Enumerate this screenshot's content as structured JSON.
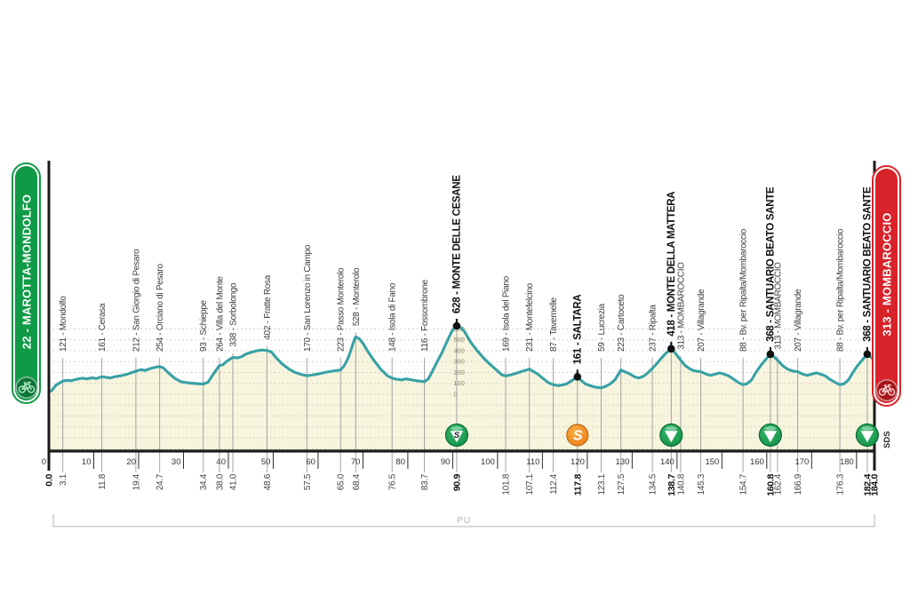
{
  "start_badge": {
    "label": "22 - MAROTTA-MONDOLFO",
    "color": "#0f9a46"
  },
  "finish_badge": {
    "label": "313 - MOMBAROCCIO",
    "color": "#d8232a"
  },
  "chart_data": {
    "type": "area",
    "title": "",
    "x_range_km": [
      0,
      184
    ],
    "ylim_m": [
      0,
      600
    ],
    "km_ticks": [
      0,
      10,
      20,
      30,
      40,
      50,
      60,
      70,
      80,
      90,
      100,
      110,
      120,
      130,
      140,
      150,
      160,
      170,
      180
    ],
    "elevation_scale": {
      "km": 90.9,
      "values": [
        600,
        500,
        400,
        300,
        200,
        100,
        0
      ]
    },
    "footer": {
      "bracket_label": "PU"
    },
    "annotations": [
      {
        "text": "SDS",
        "km": 184
      }
    ],
    "colors": {
      "line": "#38a1a5",
      "fill": "#f8f5df",
      "grid": "#c9c7ae",
      "waypoint_line": "#9a9a9a",
      "bold_line": "#1a1a1a",
      "axis": "#1a1a1a",
      "gpm": "#149a4c",
      "gpm_dark": "#0a6d35",
      "sprint": "#f08c1f",
      "sprint_dark": "#c0660d",
      "label": "#3c3c3c",
      "label_bold": "#101010",
      "footer_gray": "#b5b5b5"
    },
    "waypoints": [
      {
        "km": 0.0,
        "km_label": "0.0",
        "label": null,
        "elevation": 22,
        "bold": true,
        "marker": null
      },
      {
        "km": 3.1,
        "km_label": "3.1",
        "label": "121 - Mondolfo",
        "elevation": 121,
        "bold": false,
        "marker": null
      },
      {
        "km": 11.8,
        "km_label": "11.8",
        "label": "161 - Cerasa",
        "elevation": 161,
        "bold": false,
        "marker": null
      },
      {
        "km": 19.4,
        "km_label": "19.4",
        "label": "212 - San Giorgio di Pesaro",
        "elevation": 212,
        "bold": false,
        "marker": null
      },
      {
        "km": 24.7,
        "km_label": "24.7",
        "label": "254 - Orciano di Pesaro",
        "elevation": 254,
        "bold": false,
        "marker": null
      },
      {
        "km": 34.4,
        "km_label": "34.4",
        "label": "93 - Schieppe",
        "elevation": 93,
        "bold": false,
        "marker": null
      },
      {
        "km": 38.0,
        "km_label": "38.0",
        "label": "264 - Villa del Monte",
        "elevation": 264,
        "bold": false,
        "marker": null
      },
      {
        "km": 41.0,
        "km_label": "41.0",
        "label": "338 - Sorbolongo",
        "elevation": 338,
        "bold": false,
        "marker": null
      },
      {
        "km": 48.6,
        "km_label": "48.6",
        "label": "402 - Fratte Rosa",
        "elevation": 402,
        "bold": false,
        "marker": null
      },
      {
        "km": 57.5,
        "km_label": "57.5",
        "label": "170 - San Lorenzo in Campo",
        "elevation": 170,
        "bold": false,
        "marker": null
      },
      {
        "km": 65.0,
        "km_label": "65.0",
        "label": "223 - Passo Monterolo",
        "elevation": 223,
        "bold": false,
        "marker": null
      },
      {
        "km": 68.4,
        "km_label": "68.4",
        "label": "528 - Monterolo",
        "elevation": 528,
        "bold": false,
        "marker": null
      },
      {
        "km": 76.5,
        "km_label": "76.5",
        "label": "148 - Isola di Fano",
        "elevation": 148,
        "bold": false,
        "marker": null
      },
      {
        "km": 83.7,
        "km_label": "83.7",
        "label": "116 - Fossombrone",
        "elevation": 116,
        "bold": false,
        "marker": null
      },
      {
        "km": 90.9,
        "km_label": "90.9",
        "label": "628 - MONTE DELLE CESANE",
        "elevation": 628,
        "bold": true,
        "marker": "gpm-s"
      },
      {
        "km": 101.8,
        "km_label": "101.8",
        "label": "169 - Isola del Piano",
        "elevation": 169,
        "bold": false,
        "marker": null
      },
      {
        "km": 107.1,
        "km_label": "107.1",
        "label": "231 - Montefelcino",
        "elevation": 231,
        "bold": false,
        "marker": null
      },
      {
        "km": 112.4,
        "km_label": "112.4",
        "label": "87 - Tavernelle",
        "elevation": 87,
        "bold": false,
        "marker": null
      },
      {
        "km": 117.8,
        "km_label": "117.8",
        "label": "161 - SALTARA",
        "elevation": 161,
        "bold": true,
        "marker": "sprint"
      },
      {
        "km": 123.1,
        "km_label": "123.1",
        "label": "59 - Lucrezia",
        "elevation": 59,
        "bold": false,
        "marker": null
      },
      {
        "km": 127.5,
        "km_label": "127.5",
        "label": "223 - Cartoceto",
        "elevation": 223,
        "bold": false,
        "marker": null
      },
      {
        "km": 134.5,
        "km_label": "134.5",
        "label": "237 - Ripalta",
        "elevation": 237,
        "bold": false,
        "marker": null
      },
      {
        "km": 138.7,
        "km_label": "138.7",
        "label": "418 - MONTE DELLA MATTERA",
        "elevation": 418,
        "bold": true,
        "marker": "gpm"
      },
      {
        "km": 140.8,
        "km_label": "140.8",
        "label": "313 - MOMBAROCCIO",
        "elevation": 313,
        "bold": false,
        "marker": null
      },
      {
        "km": 145.3,
        "km_label": "145.3",
        "label": "207 - Villagrande",
        "elevation": 207,
        "bold": false,
        "marker": null
      },
      {
        "km": 154.7,
        "km_label": "154.7",
        "label": "88 - Bv. per Ripalta/Mombaroccio",
        "elevation": 88,
        "bold": false,
        "marker": null
      },
      {
        "km": 160.8,
        "km_label": "160.8",
        "label": "368 - SANTUARIO BEATO SANTE",
        "elevation": 368,
        "bold": true,
        "marker": "gpm"
      },
      {
        "km": 162.4,
        "km_label": "162.4",
        "label": "313 - MOMBAROCCIO",
        "elevation": 313,
        "bold": false,
        "marker": null
      },
      {
        "km": 166.9,
        "km_label": "166.9",
        "label": "207 - Villagrande",
        "elevation": 207,
        "bold": false,
        "marker": null
      },
      {
        "km": 176.3,
        "km_label": "176.3",
        "label": "88 - Bv. per Ripalta/Mombaroccio",
        "elevation": 88,
        "bold": false,
        "marker": null
      },
      {
        "km": 182.4,
        "km_label": "182.4",
        "label": "368 - SANTUARIO BEATO SANTE",
        "elevation": 368,
        "bold": true,
        "marker": "gpm"
      },
      {
        "km": 184.0,
        "km_label": "184.0",
        "label": null,
        "elevation": 313,
        "bold": true,
        "marker": null
      }
    ],
    "profile": [
      [
        0,
        22
      ],
      [
        0.6,
        32
      ],
      [
        1.6,
        85
      ],
      [
        3.1,
        121
      ],
      [
        4,
        128
      ],
      [
        5,
        124
      ],
      [
        6,
        136
      ],
      [
        7.5,
        148
      ],
      [
        8.5,
        141
      ],
      [
        9.6,
        151
      ],
      [
        10.6,
        144
      ],
      [
        11.8,
        161
      ],
      [
        12.6,
        157
      ],
      [
        13.6,
        149
      ],
      [
        14.6,
        160
      ],
      [
        16,
        170
      ],
      [
        17.6,
        186
      ],
      [
        19.4,
        212
      ],
      [
        20.5,
        226
      ],
      [
        21.5,
        219
      ],
      [
        22.6,
        236
      ],
      [
        24,
        251
      ],
      [
        24.7,
        254
      ],
      [
        25.5,
        243
      ],
      [
        26.6,
        198
      ],
      [
        28,
        148
      ],
      [
        29.5,
        114
      ],
      [
        31,
        104
      ],
      [
        32.6,
        99
      ],
      [
        34.4,
        93
      ],
      [
        35.5,
        112
      ],
      [
        36.6,
        182
      ],
      [
        38,
        264
      ],
      [
        38.8,
        272
      ],
      [
        39.6,
        301
      ],
      [
        40.3,
        321
      ],
      [
        41,
        338
      ],
      [
        42,
        334
      ],
      [
        43,
        346
      ],
      [
        44,
        371
      ],
      [
        45.5,
        391
      ],
      [
        46.6,
        401
      ],
      [
        47.6,
        406
      ],
      [
        48.6,
        402
      ],
      [
        49.6,
        388
      ],
      [
        50.6,
        338
      ],
      [
        52,
        278
      ],
      [
        53.6,
        228
      ],
      [
        55,
        198
      ],
      [
        56,
        184
      ],
      [
        57.5,
        170
      ],
      [
        58.6,
        176
      ],
      [
        60,
        186
      ],
      [
        61.6,
        201
      ],
      [
        63,
        211
      ],
      [
        65,
        223
      ],
      [
        65.8,
        262
      ],
      [
        66.6,
        324
      ],
      [
        67.3,
        404
      ],
      [
        68,
        492
      ],
      [
        68.4,
        528
      ],
      [
        69.2,
        508
      ],
      [
        70,
        468
      ],
      [
        71,
        398
      ],
      [
        72.5,
        308
      ],
      [
        74,
        228
      ],
      [
        75.5,
        168
      ],
      [
        76.5,
        148
      ],
      [
        77.6,
        137
      ],
      [
        78.6,
        131
      ],
      [
        79.6,
        141
      ],
      [
        80.6,
        134
      ],
      [
        82,
        124
      ],
      [
        83.7,
        116
      ],
      [
        84.6,
        142
      ],
      [
        85.6,
        222
      ],
      [
        86.6,
        302
      ],
      [
        87.6,
        382
      ],
      [
        88.6,
        472
      ],
      [
        89.6,
        562
      ],
      [
        90.4,
        614
      ],
      [
        90.9,
        628
      ],
      [
        91.6,
        619
      ],
      [
        92.6,
        578
      ],
      [
        94,
        478
      ],
      [
        95.5,
        398
      ],
      [
        97,
        328
      ],
      [
        98.5,
        268
      ],
      [
        100,
        214
      ],
      [
        101,
        178
      ],
      [
        101.8,
        169
      ],
      [
        102.8,
        176
      ],
      [
        104,
        191
      ],
      [
        105.5,
        211
      ],
      [
        107.1,
        231
      ],
      [
        108,
        209
      ],
      [
        109,
        184
      ],
      [
        110,
        149
      ],
      [
        111.2,
        109
      ],
      [
        112.4,
        87
      ],
      [
        113.5,
        79
      ],
      [
        114.5,
        86
      ],
      [
        115.5,
        97
      ],
      [
        116.6,
        127
      ],
      [
        117.8,
        161
      ],
      [
        118.6,
        128
      ],
      [
        119.6,
        94
      ],
      [
        121,
        74
      ],
      [
        122,
        64
      ],
      [
        123.1,
        59
      ],
      [
        124,
        71
      ],
      [
        125,
        92
      ],
      [
        126.2,
        134
      ],
      [
        127.5,
        223
      ],
      [
        128.5,
        204
      ],
      [
        129.6,
        184
      ],
      [
        130.6,
        159
      ],
      [
        131.6,
        149
      ],
      [
        132.6,
        166
      ],
      [
        133.6,
        201
      ],
      [
        134.5,
        237
      ],
      [
        135.5,
        281
      ],
      [
        136.5,
        331
      ],
      [
        137.5,
        376
      ],
      [
        138.7,
        418
      ],
      [
        139.6,
        378
      ],
      [
        140.8,
        313
      ],
      [
        141.8,
        264
      ],
      [
        143,
        229
      ],
      [
        144,
        214
      ],
      [
        145.3,
        207
      ],
      [
        146.5,
        184
      ],
      [
        147.5,
        174
      ],
      [
        148.5,
        184
      ],
      [
        149.5,
        196
      ],
      [
        150.5,
        184
      ],
      [
        151.5,
        169
      ],
      [
        152.6,
        139
      ],
      [
        153.6,
        109
      ],
      [
        154.7,
        88
      ],
      [
        155.6,
        96
      ],
      [
        156.6,
        131
      ],
      [
        157.6,
        201
      ],
      [
        158.6,
        261
      ],
      [
        159.6,
        311
      ],
      [
        160.8,
        368
      ],
      [
        161.6,
        344
      ],
      [
        162.4,
        313
      ],
      [
        163.5,
        264
      ],
      [
        164.5,
        234
      ],
      [
        165.7,
        214
      ],
      [
        166.9,
        207
      ],
      [
        168,
        184
      ],
      [
        169,
        174
      ],
      [
        170,
        184
      ],
      [
        171,
        196
      ],
      [
        172,
        184
      ],
      [
        173,
        169
      ],
      [
        174,
        139
      ],
      [
        175.2,
        109
      ],
      [
        176.3,
        88
      ],
      [
        177.2,
        96
      ],
      [
        178.2,
        131
      ],
      [
        179.2,
        201
      ],
      [
        180.2,
        261
      ],
      [
        181.2,
        311
      ],
      [
        182.4,
        368
      ],
      [
        183.1,
        344
      ],
      [
        184,
        313
      ]
    ]
  }
}
